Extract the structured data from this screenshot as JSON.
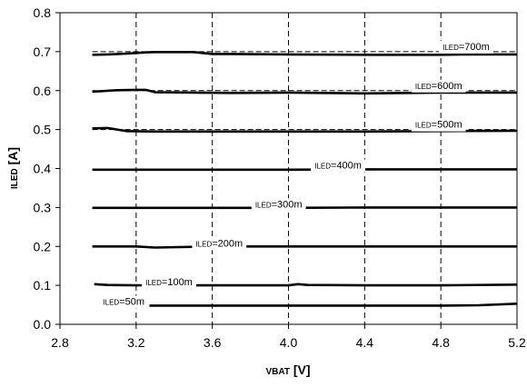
{
  "chart_data": {
    "type": "line",
    "title": "",
    "xlabel": {
      "sub": "VBAT",
      "unit": " [V]"
    },
    "ylabel": {
      "sub": "ILED",
      "unit": " [A]"
    },
    "xlim": [
      2.8,
      5.2
    ],
    "ylim": [
      0.0,
      0.8
    ],
    "xticks": [
      "2.8",
      "3.2",
      "3.6",
      "4.0",
      "4.4",
      "4.8",
      "5.2"
    ],
    "yticks": [
      "0.0",
      "0.1",
      "0.2",
      "0.3",
      "0.4",
      "0.5",
      "0.6",
      "0.7",
      "0.8"
    ],
    "grid": {
      "x": "dashed",
      "y": "none"
    },
    "line_color": "#000000",
    "series": [
      {
        "name": {
          "sub": "ILED",
          "rest": "=700m"
        },
        "setpoint": 0.7,
        "x": [
          2.97,
          3.05,
          3.15,
          3.25,
          3.3,
          3.5,
          3.6,
          3.7,
          4.0,
          4.4,
          4.8,
          4.95,
          5.2
        ],
        "values": [
          0.692,
          0.693,
          0.695,
          0.698,
          0.699,
          0.699,
          0.694,
          0.694,
          0.693,
          0.692,
          0.692,
          0.693,
          0.693
        ],
        "ref_line": true
      },
      {
        "name": {
          "sub": "ILED",
          "rest": "=600m"
        },
        "setpoint": 0.6,
        "x": [
          2.97,
          3.1,
          3.2,
          3.25,
          3.3,
          3.5,
          3.7,
          4.0,
          4.4,
          4.8,
          5.2
        ],
        "values": [
          0.597,
          0.601,
          0.602,
          0.602,
          0.596,
          0.595,
          0.594,
          0.595,
          0.593,
          0.595,
          0.595
        ],
        "ref_line": true
      },
      {
        "name": {
          "sub": "ILED",
          "rest": "=500m"
        },
        "setpoint": 0.5,
        "x": [
          2.97,
          3.05,
          3.1,
          3.15,
          3.3,
          3.6,
          4.0,
          4.4,
          4.8,
          5.2
        ],
        "values": [
          0.503,
          0.504,
          0.5,
          0.496,
          0.495,
          0.495,
          0.495,
          0.495,
          0.496,
          0.497
        ],
        "ref_line": true
      },
      {
        "name": {
          "sub": "ILED",
          "rest": "=400m"
        },
        "setpoint": 0.4,
        "x": [
          2.97,
          3.6,
          4.0,
          4.4,
          4.8,
          5.2
        ],
        "values": [
          0.397,
          0.397,
          0.397,
          0.398,
          0.398,
          0.398
        ],
        "ref_line": false
      },
      {
        "name": {
          "sub": "ILED",
          "rest": "=300m"
        },
        "setpoint": 0.3,
        "x": [
          2.97,
          3.6,
          4.0,
          4.4,
          4.8,
          5.2
        ],
        "values": [
          0.299,
          0.299,
          0.299,
          0.3,
          0.3,
          0.3
        ],
        "ref_line": false
      },
      {
        "name": {
          "sub": "ILED",
          "rest": "=200m"
        },
        "setpoint": 0.2,
        "x": [
          2.97,
          3.2,
          3.3,
          3.6,
          4.0,
          4.4,
          4.8,
          5.2
        ],
        "values": [
          0.2,
          0.2,
          0.197,
          0.2,
          0.2,
          0.2,
          0.2,
          0.2
        ],
        "ref_line": false
      },
      {
        "name": {
          "sub": "ILED",
          "rest": "=100m"
        },
        "setpoint": 0.1,
        "x": [
          2.98,
          3.05,
          3.2,
          3.6,
          4.0,
          4.05,
          4.1,
          4.4,
          4.8,
          5.2
        ],
        "values": [
          0.103,
          0.101,
          0.1,
          0.1,
          0.1,
          0.103,
          0.101,
          0.1,
          0.1,
          0.102
        ],
        "ref_line": false
      },
      {
        "name": {
          "sub": "ILED",
          "rest": "=50m"
        },
        "setpoint": 0.05,
        "x": [
          3.27,
          3.6,
          4.0,
          4.4,
          4.8,
          5.0,
          5.2
        ],
        "values": [
          0.048,
          0.048,
          0.048,
          0.048,
          0.048,
          0.049,
          0.053
        ],
        "ref_line": false
      }
    ]
  }
}
